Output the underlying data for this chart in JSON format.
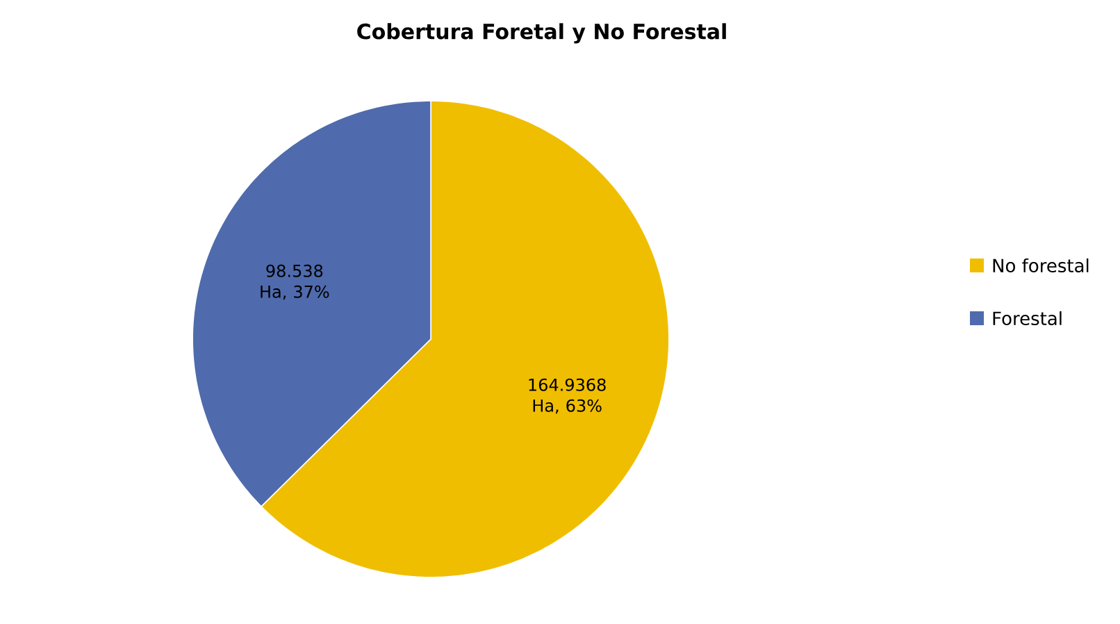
{
  "chart_data": {
    "type": "pie",
    "title": "Cobertura Foretal y No Forestal",
    "categories": [
      "No forestal",
      "Forestal"
    ],
    "values": [
      164.9368,
      98.538
    ],
    "value_labels": [
      "164.9368 Ha, 63%",
      "98.538 Ha, 37%"
    ],
    "colors": [
      "#f0be00",
      "#4f6bad"
    ],
    "legend": "right"
  }
}
